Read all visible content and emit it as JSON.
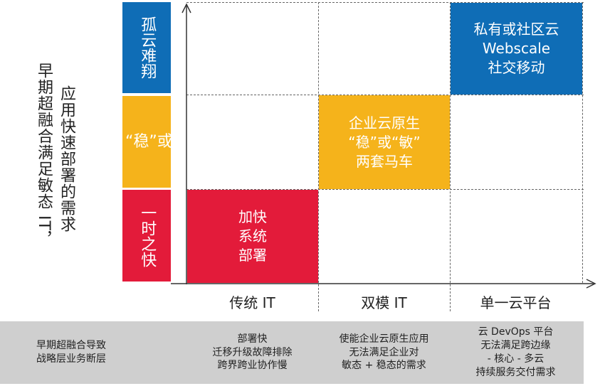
{
  "y_axis_titles": [
    "早期超融合满足敏态 IT，",
    "应用快速部署的需求"
  ],
  "rows": [
    {
      "label": "孤云难翔",
      "color": "#0f6db6"
    },
    {
      "label": "“稳”或“敏”",
      "color": "#f5b31b"
    },
    {
      "label": "一时之快",
      "color": "#e31b3a"
    }
  ],
  "cells": {
    "top_right": "私有或社区云\nWebscale\n社交移动",
    "middle_center": "企业云原生\n“稳”或“敏”\n两套马车",
    "bottom_left": "加快\n系统\n部署"
  },
  "columns": [
    "传统 IT",
    "双模 IT",
    "单一云平台"
  ],
  "bottom": [
    "早期超融合导致\n战略层业务断层",
    "部署快\n迁移升级故障排除\n跨界跨业协作慢",
    "使能企业云原生应用\n无法满足企业对\n敏态 + 稳态的需求",
    "云 DevOps 平台\n无法满足跨边缘\n- 核心 - 多云\n持续服务交付需求"
  ]
}
